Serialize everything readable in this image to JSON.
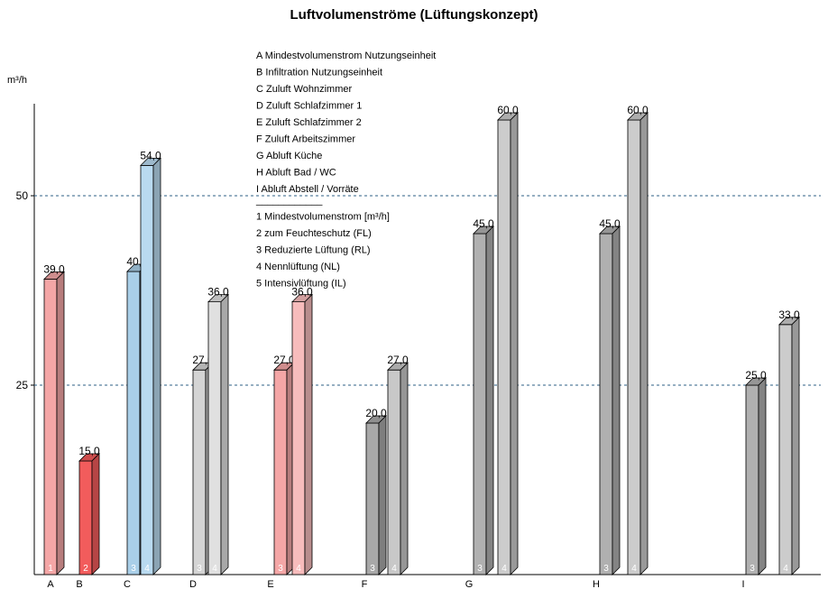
{
  "chart_data": {
    "type": "bar",
    "title": "Luftvolumenströme (Lüftungskonzept)",
    "ylabel": "m³/h",
    "ylim": [
      0,
      60
    ],
    "yticks": [
      25,
      50
    ],
    "grid": "dashed horizontal at y-ticks",
    "legend": {
      "position": "top-center",
      "items": [
        "A Mindestvolumenstrom Nutzungseinheit",
        "B Infiltration Nutzungseinheit",
        "C Zuluft Wohnzimmer",
        "D Zuluft Schlafzimmer 1",
        "E Zuluft Schlafzimmer 2",
        "F Zuluft Arbeitszimmer",
        "G Abluft Küche",
        "H Abluft Bad / WC",
        "I Abluft Abstell / Vorräte"
      ],
      "divider": "____________",
      "series_items": [
        "1 Mindestvolumenstrom [m³/h]",
        "2 zum Feuchteschutz (FL)",
        "3 Reduzierte Lüftung (RL)",
        "4 Nennlüftung (NL)",
        "5 Intensivlüftung (IL)"
      ]
    },
    "groups": [
      {
        "category": "A",
        "bars": [
          {
            "index": "1",
            "value": 39.0,
            "label": "39,0",
            "color": "#f4a6a6"
          }
        ]
      },
      {
        "category": "B",
        "bars": [
          {
            "index": "2",
            "value": 15.0,
            "label": "15,0",
            "color": "#f25c5c"
          }
        ]
      },
      {
        "category": "C",
        "bars": [
          {
            "index": "3",
            "value": 40.0,
            "label": "40,0",
            "color": "#a9cfe8"
          },
          {
            "index": "4",
            "value": 54.0,
            "label": "54,0",
            "color": "#b9daf0"
          }
        ]
      },
      {
        "category": "D",
        "bars": [
          {
            "index": "3",
            "value": 27.0,
            "label": "27,0",
            "color": "#d4d4d4"
          },
          {
            "index": "4",
            "value": 36.0,
            "label": "36,0",
            "color": "#e0e0e0"
          }
        ]
      },
      {
        "category": "E",
        "bars": [
          {
            "index": "3",
            "value": 27.0,
            "label": "27,0",
            "color": "#f4a6a6"
          },
          {
            "index": "4",
            "value": 36.0,
            "label": "36,0",
            "color": "#f7bcbc"
          }
        ]
      },
      {
        "category": "F",
        "bars": [
          {
            "index": "3",
            "value": 20.0,
            "label": "20,0",
            "color": "#a8a8a8"
          },
          {
            "index": "4",
            "value": 27.0,
            "label": "27,0",
            "color": "#c8c8c8"
          }
        ]
      },
      {
        "category": "G",
        "bars": [
          {
            "index": "3",
            "value": 45.0,
            "label": "45,0",
            "color": "#b0b0b0"
          },
          {
            "index": "4",
            "value": 60.0,
            "label": "60,0",
            "color": "#cccccc"
          }
        ]
      },
      {
        "category": "H",
        "bars": [
          {
            "index": "3",
            "value": 45.0,
            "label": "45,0",
            "color": "#b0b0b0"
          },
          {
            "index": "4",
            "value": 60.0,
            "label": "60,0",
            "color": "#cccccc"
          }
        ]
      },
      {
        "category": "I",
        "bars": [
          {
            "index": "3",
            "value": 25.0,
            "label": "25,0",
            "color": "#b0b0b0"
          },
          {
            "index": "4",
            "value": 33.0,
            "label": "33,0",
            "color": "#cccccc"
          }
        ]
      }
    ]
  }
}
